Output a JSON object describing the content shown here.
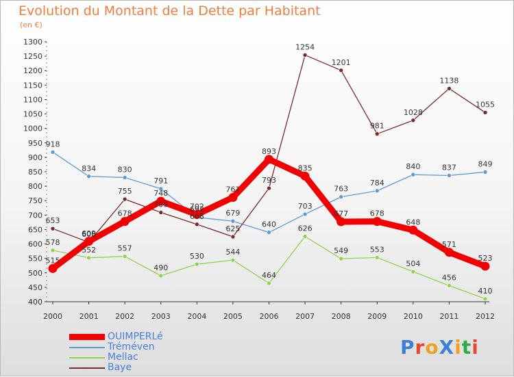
{
  "header": {
    "title": "Evolution du Montant de la Dette par Habitant",
    "subtitle": "(en €)"
  },
  "colors": {
    "title": "#ef7d3d",
    "legend_text": "#4a7de0",
    "axis": "#333333",
    "grid": "#d9d9d9"
  },
  "brand": {
    "text": "ProXiti",
    "letters": [
      "P",
      "r",
      "o",
      "X",
      "i",
      "t",
      "i"
    ],
    "letter_colors": [
      "#3d7fd6",
      "#e8452c",
      "#f0a020",
      "#3d7fd6",
      "#f0a020",
      "#2eaa4a",
      "#e8452c"
    ]
  },
  "chart_data": {
    "type": "line",
    "title": "Evolution du Montant de la Dette par Habitant",
    "subtitle": "(en €)",
    "xlabel": "",
    "ylabel": "",
    "x": [
      "2000",
      "2001",
      "2002",
      "2003",
      "2004",
      "2005",
      "2006",
      "2007",
      "2008",
      "2009",
      "2010",
      "2011",
      "2012"
    ],
    "ylim": [
      400,
      1300
    ],
    "yticks": [
      "400",
      "450",
      "500",
      "550",
      "600",
      "650",
      "700",
      "750",
      "800",
      "850",
      "900",
      "950",
      "1000",
      "1050",
      "1100",
      "1150",
      "1200",
      "1250",
      "1300"
    ],
    "grid": false,
    "legend_position": "bottom-left",
    "series": [
      {
        "name": "OUIMPERLé",
        "color": "#f20000",
        "emphasis": "thick",
        "values": [
          515,
          609,
          678,
          748,
          702,
          761,
          893,
          835,
          677,
          678,
          648,
          571,
          523
        ],
        "labels": [
          "515",
          "609",
          "678",
          "748",
          "702",
          "761",
          "893",
          "835",
          "677",
          "678",
          "648",
          "571",
          "523"
        ]
      },
      {
        "name": "Tréméven",
        "color": "#5b9bd5",
        "emphasis": "thin",
        "values": [
          918,
          834,
          830,
          791,
          692,
          679,
          640,
          703,
          763,
          784,
          840,
          837,
          849
        ],
        "labels": [
          "918",
          "834",
          "830",
          "791",
          "692",
          "679",
          "640",
          "703",
          "763",
          "784",
          "840",
          "837",
          "849"
        ]
      },
      {
        "name": "Mellac",
        "color": "#8cd44d",
        "emphasis": "thin",
        "values": [
          578,
          552,
          557,
          490,
          530,
          544,
          464,
          626,
          549,
          553,
          504,
          456,
          410
        ],
        "labels": [
          "578",
          "552",
          "557",
          "490",
          "530",
          "544",
          "464",
          "626",
          "549",
          "553",
          "504",
          "456",
          "410"
        ]
      },
      {
        "name": "Baye",
        "color": "#7a2a2a",
        "emphasis": "thin",
        "values": [
          653,
          606,
          755,
          709,
          668,
          625,
          793,
          1254,
          1201,
          981,
          1028,
          1138,
          1055
        ],
        "labels": [
          "653",
          "606",
          "755",
          "709",
          "668",
          "625",
          "793",
          "1254",
          "1201",
          "981",
          "1028",
          "1138",
          "1055"
        ]
      }
    ]
  }
}
